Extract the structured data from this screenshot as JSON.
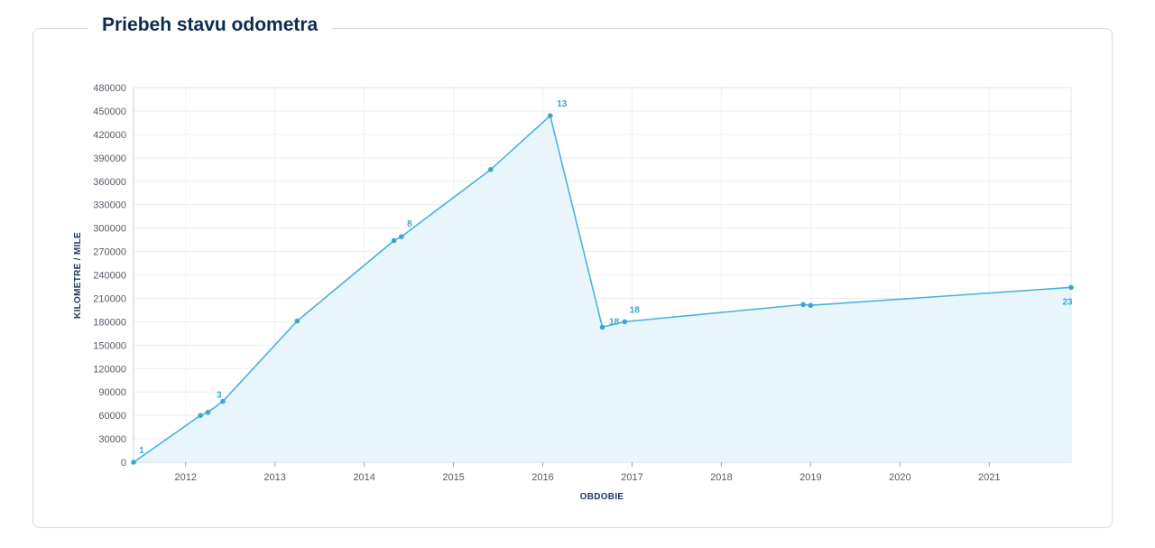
{
  "header": {
    "title": "Priebeh stavu odometra"
  },
  "chart_data": {
    "type": "area",
    "xlabel": "OBDOBIE",
    "ylabel": "KILOMETRE / MILE",
    "ylim": [
      0,
      480000
    ],
    "y_ticks": [
      0,
      30000,
      60000,
      90000,
      120000,
      150000,
      180000,
      210000,
      240000,
      270000,
      300000,
      330000,
      360000,
      390000,
      420000,
      450000,
      480000
    ],
    "x_ticks": [
      "2012",
      "2013",
      "2014",
      "2015",
      "2016",
      "2017",
      "2018",
      "2019",
      "2020",
      "2021"
    ],
    "xlim": [
      "2011-06",
      "2021-12"
    ],
    "grid": true,
    "series": [
      {
        "points": [
          {
            "x": "2011-06",
            "y": 0,
            "label": "1"
          },
          {
            "x": "2012-03",
            "y": 60000
          },
          {
            "x": "2012-04",
            "y": 64000
          },
          {
            "x": "2012-06",
            "y": 78000,
            "label": "3"
          },
          {
            "x": "2013-04",
            "y": 181000
          },
          {
            "x": "2014-05",
            "y": 284000
          },
          {
            "x": "2014-06",
            "y": 289000,
            "label": "8"
          },
          {
            "x": "2015-06",
            "y": 375000
          },
          {
            "x": "2016-02",
            "y": 444000,
            "label": "13"
          },
          {
            "x": "2016-09",
            "y": 173000,
            "label": "18"
          },
          {
            "x": "2016-12",
            "y": 180000,
            "label": "18"
          },
          {
            "x": "2018-12",
            "y": 202000
          },
          {
            "x": "2019-01",
            "y": 201000
          },
          {
            "x": "2021-12",
            "y": 224000,
            "label": "23"
          }
        ]
      }
    ]
  }
}
